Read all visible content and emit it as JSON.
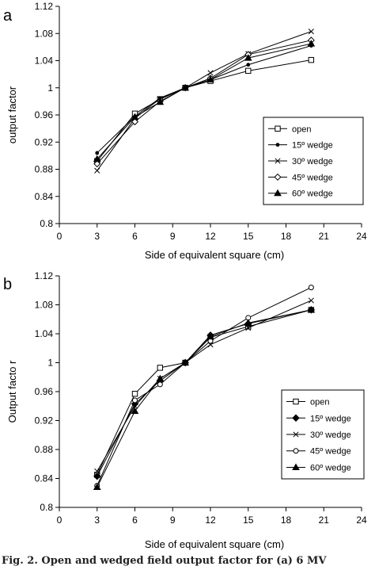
{
  "caption": "Fig. 2. Open and wedged field output factor for (a) 6 MV",
  "chart_data": [
    {
      "panel": "a",
      "type": "line",
      "xlabel": "Side of equivalent square (cm)",
      "ylabel": "output factor",
      "xlim": [
        0,
        24
      ],
      "ylim": [
        0.8,
        1.12
      ],
      "xticks": [
        0,
        3,
        6,
        9,
        12,
        15,
        18,
        21,
        24
      ],
      "yticks": [
        0.8,
        0.84,
        0.88,
        0.92,
        0.96,
        1.0,
        1.04,
        1.08,
        1.12
      ],
      "ytick_labels": [
        "0.8",
        "0.84",
        "0.88",
        "0.92",
        "0.96",
        "1",
        "1.04",
        "1.08",
        "1.12"
      ],
      "grid": false,
      "legend_position": "lower-right",
      "series": [
        {
          "name": "open",
          "marker": "square-open",
          "x": [
            3,
            6,
            8,
            10,
            12,
            15,
            20
          ],
          "values": [
            0.892,
            0.962,
            0.983,
            1.0,
            1.01,
            1.025,
            1.041
          ]
        },
        {
          "name": "15º wedge",
          "marker": "dot",
          "x": [
            3,
            6,
            8,
            10,
            12,
            15,
            20
          ],
          "values": [
            0.904,
            0.958,
            0.985,
            1.0,
            1.012,
            1.034,
            1.062
          ]
        },
        {
          "name": "30º wedge",
          "marker": "x",
          "x": [
            3,
            6,
            8,
            10,
            12,
            15,
            20
          ],
          "values": [
            0.878,
            0.955,
            0.984,
            1.0,
            1.022,
            1.05,
            1.083
          ]
        },
        {
          "name": "45º wedge",
          "marker": "diamond-open",
          "x": [
            3,
            6,
            8,
            10,
            12,
            15,
            20
          ],
          "values": [
            0.888,
            0.95,
            0.98,
            1.0,
            1.014,
            1.049,
            1.07
          ]
        },
        {
          "name": "60º wedge",
          "marker": "triangle",
          "x": [
            3,
            6,
            8,
            10,
            12,
            15,
            20
          ],
          "values": [
            0.895,
            0.957,
            0.979,
            1.0,
            1.012,
            1.044,
            1.065
          ]
        }
      ]
    },
    {
      "panel": "b",
      "type": "line",
      "xlabel": "Side of equivalent square (cm)",
      "ylabel": "Output facto  r",
      "xlim": [
        0,
        24
      ],
      "ylim": [
        0.8,
        1.12
      ],
      "xticks": [
        0,
        3,
        6,
        9,
        12,
        15,
        18,
        21,
        24
      ],
      "yticks": [
        0.8,
        0.84,
        0.88,
        0.92,
        0.96,
        1.0,
        1.04,
        1.08,
        1.12
      ],
      "ytick_labels": [
        "0.8",
        "0.84",
        "0.88",
        "0.92",
        "0.96",
        "1",
        "1.04",
        "1.08",
        "1.12"
      ],
      "grid": false,
      "legend_position": "lower-right",
      "series": [
        {
          "name": "open",
          "marker": "square-open",
          "x": [
            3,
            6,
            8,
            10,
            12,
            15,
            20
          ],
          "values": [
            0.845,
            0.957,
            0.993,
            1.0,
            1.035,
            1.05,
            1.073
          ]
        },
        {
          "name": "15º wedge",
          "marker": "diamond",
          "x": [
            3,
            6,
            8,
            10,
            12,
            15,
            20
          ],
          "values": [
            0.843,
            0.943,
            0.975,
            1.0,
            1.038,
            1.054,
            1.073
          ]
        },
        {
          "name": "30º wedge",
          "marker": "x",
          "x": [
            3,
            6,
            8,
            10,
            12,
            15,
            20
          ],
          "values": [
            0.85,
            0.94,
            0.978,
            1.0,
            1.025,
            1.048,
            1.086
          ]
        },
        {
          "name": "45º wedge",
          "marker": "circle-open",
          "x": [
            3,
            6,
            8,
            10,
            12,
            15,
            20
          ],
          "values": [
            0.83,
            0.948,
            0.97,
            1.0,
            1.03,
            1.062,
            1.104
          ]
        },
        {
          "name": "60º wedge",
          "marker": "triangle",
          "x": [
            3,
            6,
            8,
            10,
            12,
            15,
            20
          ],
          "values": [
            0.828,
            0.933,
            0.978,
            1.0,
            1.036,
            1.055,
            1.073
          ]
        }
      ]
    }
  ]
}
